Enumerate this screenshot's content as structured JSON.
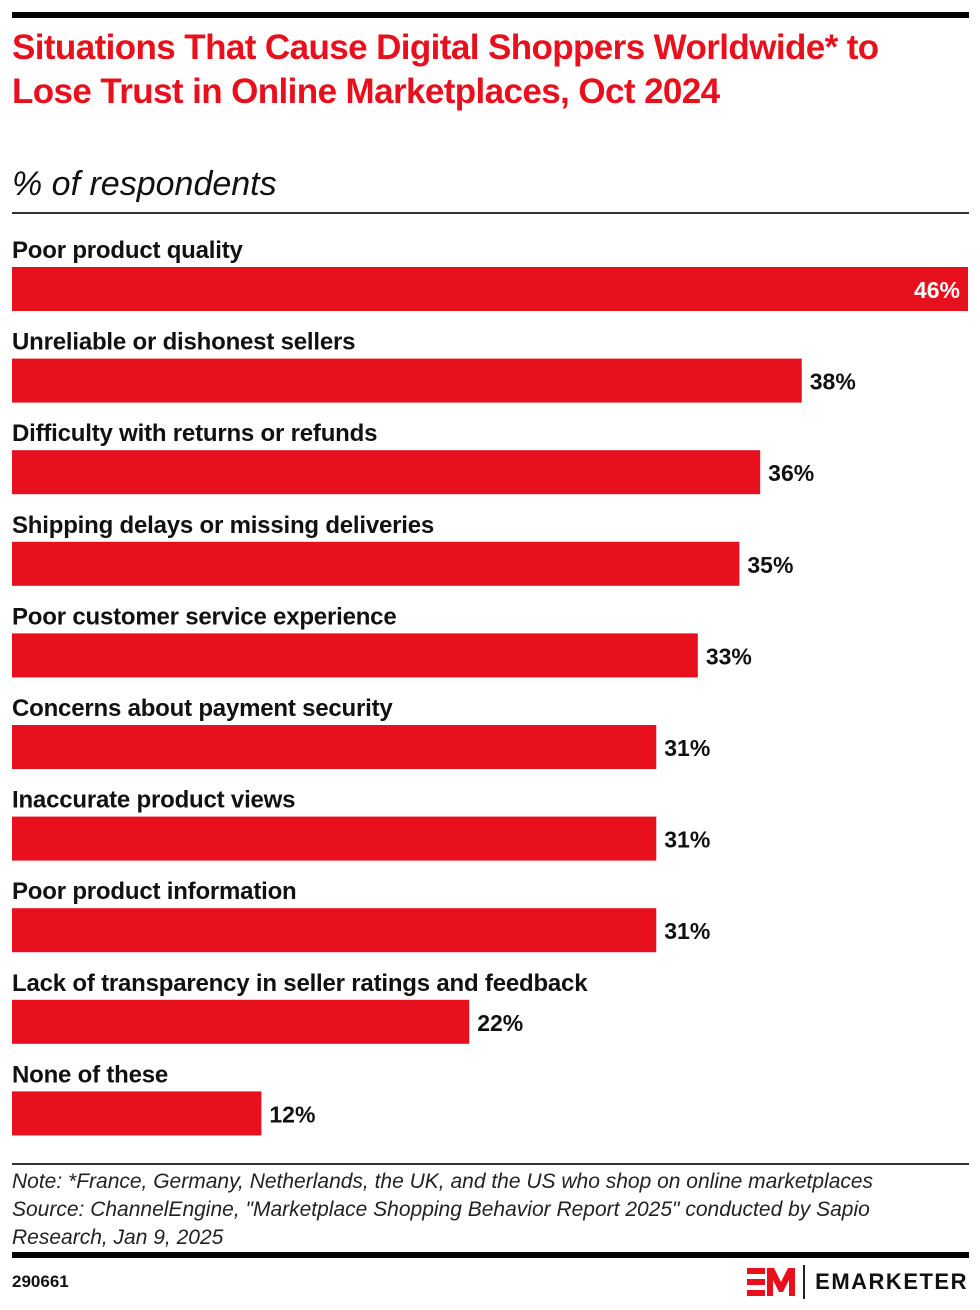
{
  "header": {
    "title": "Situations That Cause Digital Shoppers Worldwide* to Lose Trust in Online Marketplaces, Oct 2024",
    "subtitle": "% of respondents"
  },
  "chart_data": {
    "type": "bar",
    "orientation": "horizontal",
    "title": "Situations That Cause Digital Shoppers Worldwide* to Lose Trust in Online Marketplaces, Oct 2024",
    "subtitle": "% of respondents",
    "xlabel": "",
    "ylabel": "",
    "unit": "%",
    "xlim": [
      0,
      46
    ],
    "grid": false,
    "legend": "none",
    "bar_color": "#e8101c",
    "categories": [
      "Poor product quality",
      "Unreliable or dishonest sellers",
      "Difficulty with returns or refunds",
      "Shipping delays or missing deliveries",
      "Poor customer service experience",
      "Concerns about payment security",
      "Inaccurate product views",
      "Poor product information",
      "Lack of transparency in seller ratings and feedback",
      "None of these"
    ],
    "values": [
      46,
      38,
      36,
      35,
      33,
      31,
      31,
      31,
      22,
      12
    ],
    "data_labels": [
      "46%",
      "38%",
      "36%",
      "35%",
      "33%",
      "31%",
      "31%",
      "31%",
      "22%",
      "12%"
    ]
  },
  "footer": {
    "note": "Note: *France, Germany, Netherlands, the UK, and the US who shop on online marketplaces",
    "source_line1": "Source: ChannelEngine, \"Marketplace Shopping Behavior Report 2025\" conducted by Sapio",
    "source_line2": "Research, Jan 9, 2025",
    "chart_id": "290661",
    "brand": "EMARKETER",
    "brand_color": "#e8101c"
  }
}
